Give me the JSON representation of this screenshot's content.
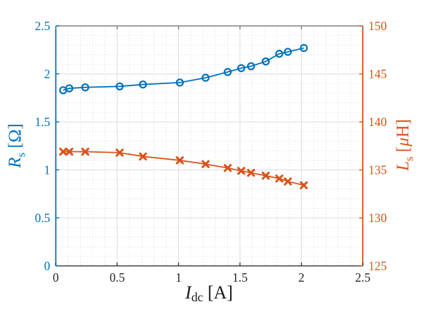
{
  "figure": {
    "background": "#ffffff"
  },
  "chart_data": {
    "type": "line",
    "title": "",
    "x": [
      0.06,
      0.11,
      0.24,
      0.52,
      0.71,
      1.01,
      1.22,
      1.4,
      1.51,
      1.59,
      1.71,
      1.82,
      1.89,
      2.02
    ],
    "series": [
      {
        "name": "Rs",
        "yaxis": "left",
        "color": "#0072BD",
        "marker": "circle",
        "line_width": 1.8,
        "values": [
          1.83,
          1.85,
          1.86,
          1.87,
          1.89,
          1.91,
          1.96,
          2.02,
          2.06,
          2.08,
          2.13,
          2.21,
          2.23,
          2.27
        ]
      },
      {
        "name": "Ls",
        "yaxis": "right",
        "color": "#D95319",
        "marker": "x",
        "line_width": 1.8,
        "values": [
          136.9,
          136.9,
          136.9,
          136.8,
          136.4,
          136.0,
          135.6,
          135.2,
          134.9,
          134.7,
          134.4,
          134.1,
          133.8,
          133.4
        ]
      }
    ],
    "x_axis": {
      "label": "I_dc [A]",
      "range": [
        0,
        2.5
      ],
      "tick_values": [
        0,
        0.5,
        1,
        1.5,
        2,
        2.5
      ],
      "tick_labels": [
        "0",
        "0.5",
        "1",
        "1.5",
        "2",
        "2.5"
      ],
      "minor_step": 0.1,
      "color": "#262626"
    },
    "y_axis_left": {
      "label": "R_s [Ω]",
      "range": [
        0,
        2.5
      ],
      "tick_values": [
        0,
        0.5,
        1,
        1.5,
        2,
        2.5
      ],
      "tick_labels": [
        "0",
        "0.5",
        "1",
        "1.5",
        "2",
        "2.5"
      ],
      "minor_step": 0.1,
      "color": "#0072BD"
    },
    "y_axis_right": {
      "label": "L_s [μH]",
      "range": [
        125,
        150
      ],
      "tick_values": [
        125,
        130,
        135,
        140,
        145,
        150
      ],
      "tick_labels": [
        "125",
        "130",
        "135",
        "140",
        "145",
        "150"
      ],
      "minor_step": 1,
      "color": "#D95319"
    },
    "grid": {
      "major": true,
      "minor": true,
      "major_color": "#dbdbe3",
      "minor_color": "#d7d7df",
      "top_border_color": "#808080",
      "bottom_border_color": "#3b3b3b"
    },
    "legend": null
  },
  "labels": {
    "xlabel": {
      "var": "I",
      "sub": "dc",
      "unit": " [A]"
    },
    "ylabel_left": {
      "var": "R",
      "sub": "s",
      "unit": " [Ω]"
    },
    "ylabel_right": {
      "var": "L",
      "sub": "s",
      "unit_pre": " [",
      "mu": "μ",
      "unit_post": "H]"
    }
  }
}
